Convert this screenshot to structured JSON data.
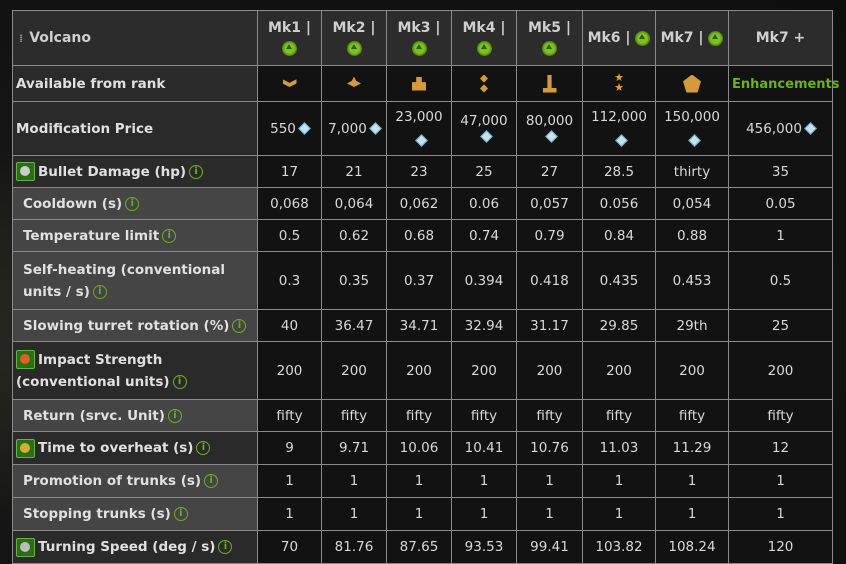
{
  "header": {
    "title": "Volcano",
    "columns": [
      "Mk1 |",
      "Mk2 |",
      "Mk3 |",
      "Mk4 |",
      "Mk5 |",
      "Mk6 |",
      "Mk7 |",
      "Mk7 +"
    ]
  },
  "rank_row": {
    "label": "Available from rank",
    "enhancements": "Enhancements",
    "rank_icons": [
      "sergeant-chevrons-icon",
      "staff-sergeant-icon",
      "bars-icon",
      "two-diamonds-icon",
      "two-stars-bar-icon",
      "two-stars-icon",
      "star-badge-icon"
    ]
  },
  "price_row": {
    "label": "Modification Price",
    "values": [
      "550",
      "7,000",
      "23,000",
      "47,000",
      "80,000",
      "112,000",
      "150,000",
      "456,000"
    ],
    "currency_icon": "crystal-icon"
  },
  "rows": [
    {
      "label": "Bullet Damage (hp)",
      "type": "main",
      "icon": "damage-icon",
      "values": [
        "17",
        "21",
        "23",
        "25",
        "27",
        "28.5",
        "thirty",
        "35"
      ]
    },
    {
      "label": "Cooldown (s)",
      "type": "sub",
      "values": [
        "0,068",
        "0,064",
        "0,062",
        "0.06",
        "0,057",
        "0.056",
        "0,054",
        "0.05"
      ]
    },
    {
      "label": "Temperature limit",
      "type": "sub",
      "values": [
        "0.5",
        "0.62",
        "0.68",
        "0.74",
        "0.79",
        "0.84",
        "0.88",
        "1"
      ]
    },
    {
      "label": "Self-heating (conventional units / s)",
      "type": "sub",
      "values": [
        "0.3",
        "0.35",
        "0.37",
        "0.394",
        "0.418",
        "0.435",
        "0.453",
        "0.5"
      ]
    },
    {
      "label": "Slowing turret rotation (%)",
      "type": "sub",
      "values": [
        "40",
        "36.47",
        "34.71",
        "32.94",
        "31.17",
        "29.85",
        "29th",
        "25"
      ]
    },
    {
      "label": "Impact Strength (conventional units)",
      "type": "main",
      "icon": "impact-icon",
      "values": [
        "200",
        "200",
        "200",
        "200",
        "200",
        "200",
        "200",
        "200"
      ]
    },
    {
      "label": "Return (srvc. Unit)",
      "type": "sub",
      "values": [
        "fifty",
        "fifty",
        "fifty",
        "fifty",
        "fifty",
        "fifty",
        "fifty",
        "fifty"
      ]
    },
    {
      "label": "Time to overheat (s)",
      "type": "main",
      "icon": "overheat-icon",
      "values": [
        "9",
        "9.71",
        "10.06",
        "10.41",
        "10.76",
        "11.03",
        "11.29",
        "12"
      ]
    },
    {
      "label": "Promotion of trunks (s)",
      "type": "sub",
      "values": [
        "1",
        "1",
        "1",
        "1",
        "1",
        "1",
        "1",
        "1"
      ]
    },
    {
      "label": "Stopping trunks (s)",
      "type": "sub",
      "values": [
        "1",
        "1",
        "1",
        "1",
        "1",
        "1",
        "1",
        "1"
      ]
    },
    {
      "label": "Turning Speed (deg / s)",
      "type": "main",
      "icon": "turning-speed-icon",
      "values": [
        "70",
        "81.76",
        "87.65",
        "93.53",
        "99.41",
        "103.82",
        "108.24",
        "120"
      ]
    }
  ],
  "info_symbol": "i",
  "colors": {
    "accent_green": "#6bb01e",
    "header_bg": "#2c2c2c",
    "value_bg": "#121212",
    "sub_label_bg": "#454545"
  }
}
